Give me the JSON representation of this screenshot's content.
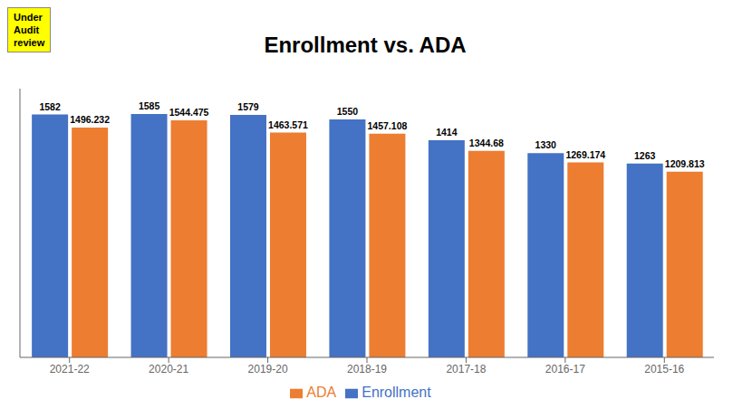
{
  "chart_data": {
    "type": "bar",
    "title": "Enrollment vs. ADA",
    "annotation": "Under\nAudit\nreview",
    "categories": [
      "2021-22",
      "2020-21",
      "2019-20",
      "2018-19",
      "2017-18",
      "2016-17",
      "2015-16"
    ],
    "series": [
      {
        "name": "Enrollment",
        "color": "#4472C4",
        "values": [
          1582,
          1585,
          1579,
          1550,
          1414,
          1330,
          1263
        ]
      },
      {
        "name": "ADA",
        "color": "#ED7D31",
        "values": [
          1496.232,
          1544.475,
          1463.571,
          1457.108,
          1344.68,
          1269.174,
          1209.813
        ]
      }
    ],
    "ylim": [
      0,
      1750
    ],
    "grid": false,
    "legend": "bottom",
    "data_labels": true,
    "tick_labels": "x"
  }
}
